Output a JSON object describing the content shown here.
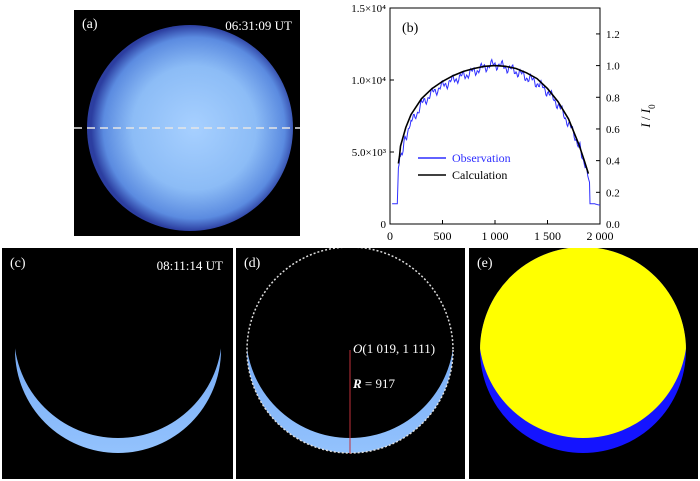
{
  "panels": {
    "a": {
      "label": "(a)",
      "timestamp": "06:31:09 UT"
    },
    "b": {
      "label": "(b)"
    },
    "c": {
      "label": "(c)",
      "timestamp": "08:11:14 UT"
    },
    "d": {
      "label": "(d)",
      "center_label_italic": "O",
      "center_label": "(1 019, 1 111)",
      "radius_label_italic": "R",
      "radius_label": " = 917"
    },
    "e": {
      "label": "(e)"
    }
  },
  "colors": {
    "observation": "#2f2fff",
    "calculation": "#000000",
    "occulted": "#ffff00",
    "visible": "#1414ff"
  },
  "chart_data": {
    "type": "line",
    "x_ticks": [
      0,
      500,
      1000,
      1500,
      2000
    ],
    "x_tick_labels": [
      "0",
      "500",
      "1 000",
      "1 500",
      "2 000"
    ],
    "xlim": [
      0,
      2000
    ],
    "y_left_ticks": [
      0,
      5000,
      10000,
      15000
    ],
    "y_left_tick_labels": [
      "0",
      "5.0×10³",
      "1.0×10⁴",
      "1.5×10⁴"
    ],
    "y_left_lim": [
      0,
      15000
    ],
    "y_right_ticks": [
      0.0,
      0.2,
      0.4,
      0.6,
      0.8,
      1.0,
      1.2
    ],
    "y_right_tick_labels": [
      "0.0",
      "0.2",
      "0.4",
      "0.6",
      "0.8",
      "1.0",
      "1.2"
    ],
    "y_right_label_italic": "I",
    "y_right_label_sep": " / ",
    "y_right_label_base": "I",
    "y_right_label_sub": "0",
    "legend": {
      "position": "center-bottom"
    },
    "series": [
      {
        "name": "Observation",
        "x": [
          20,
          70,
          80,
          100,
          150,
          200,
          300,
          400,
          500,
          600,
          700,
          800,
          900,
          1000,
          1100,
          1200,
          1300,
          1400,
          1500,
          1600,
          1700,
          1800,
          1850,
          1900,
          1905,
          1950,
          2000
        ],
        "y": [
          1400,
          1400,
          3900,
          4600,
          6000,
          7000,
          8300,
          9100,
          9600,
          10000,
          10300,
          10600,
          10900,
          11100,
          10900,
          10600,
          10200,
          9800,
          9200,
          8300,
          7000,
          5500,
          4200,
          2900,
          1400,
          1400,
          1300
        ]
      },
      {
        "name": "Calculation",
        "x": [
          80,
          90,
          100,
          150,
          200,
          300,
          400,
          500,
          600,
          700,
          800,
          900,
          1000,
          1100,
          1200,
          1300,
          1400,
          1500,
          1600,
          1700,
          1800,
          1850,
          1890
        ],
        "y": [
          4200,
          4700,
          5400,
          6700,
          7600,
          8700,
          9400,
          9900,
          10300,
          10600,
          10800,
          10950,
          11000,
          10950,
          10800,
          10500,
          10100,
          9400,
          8500,
          7300,
          5500,
          4400,
          3500
        ]
      }
    ]
  }
}
